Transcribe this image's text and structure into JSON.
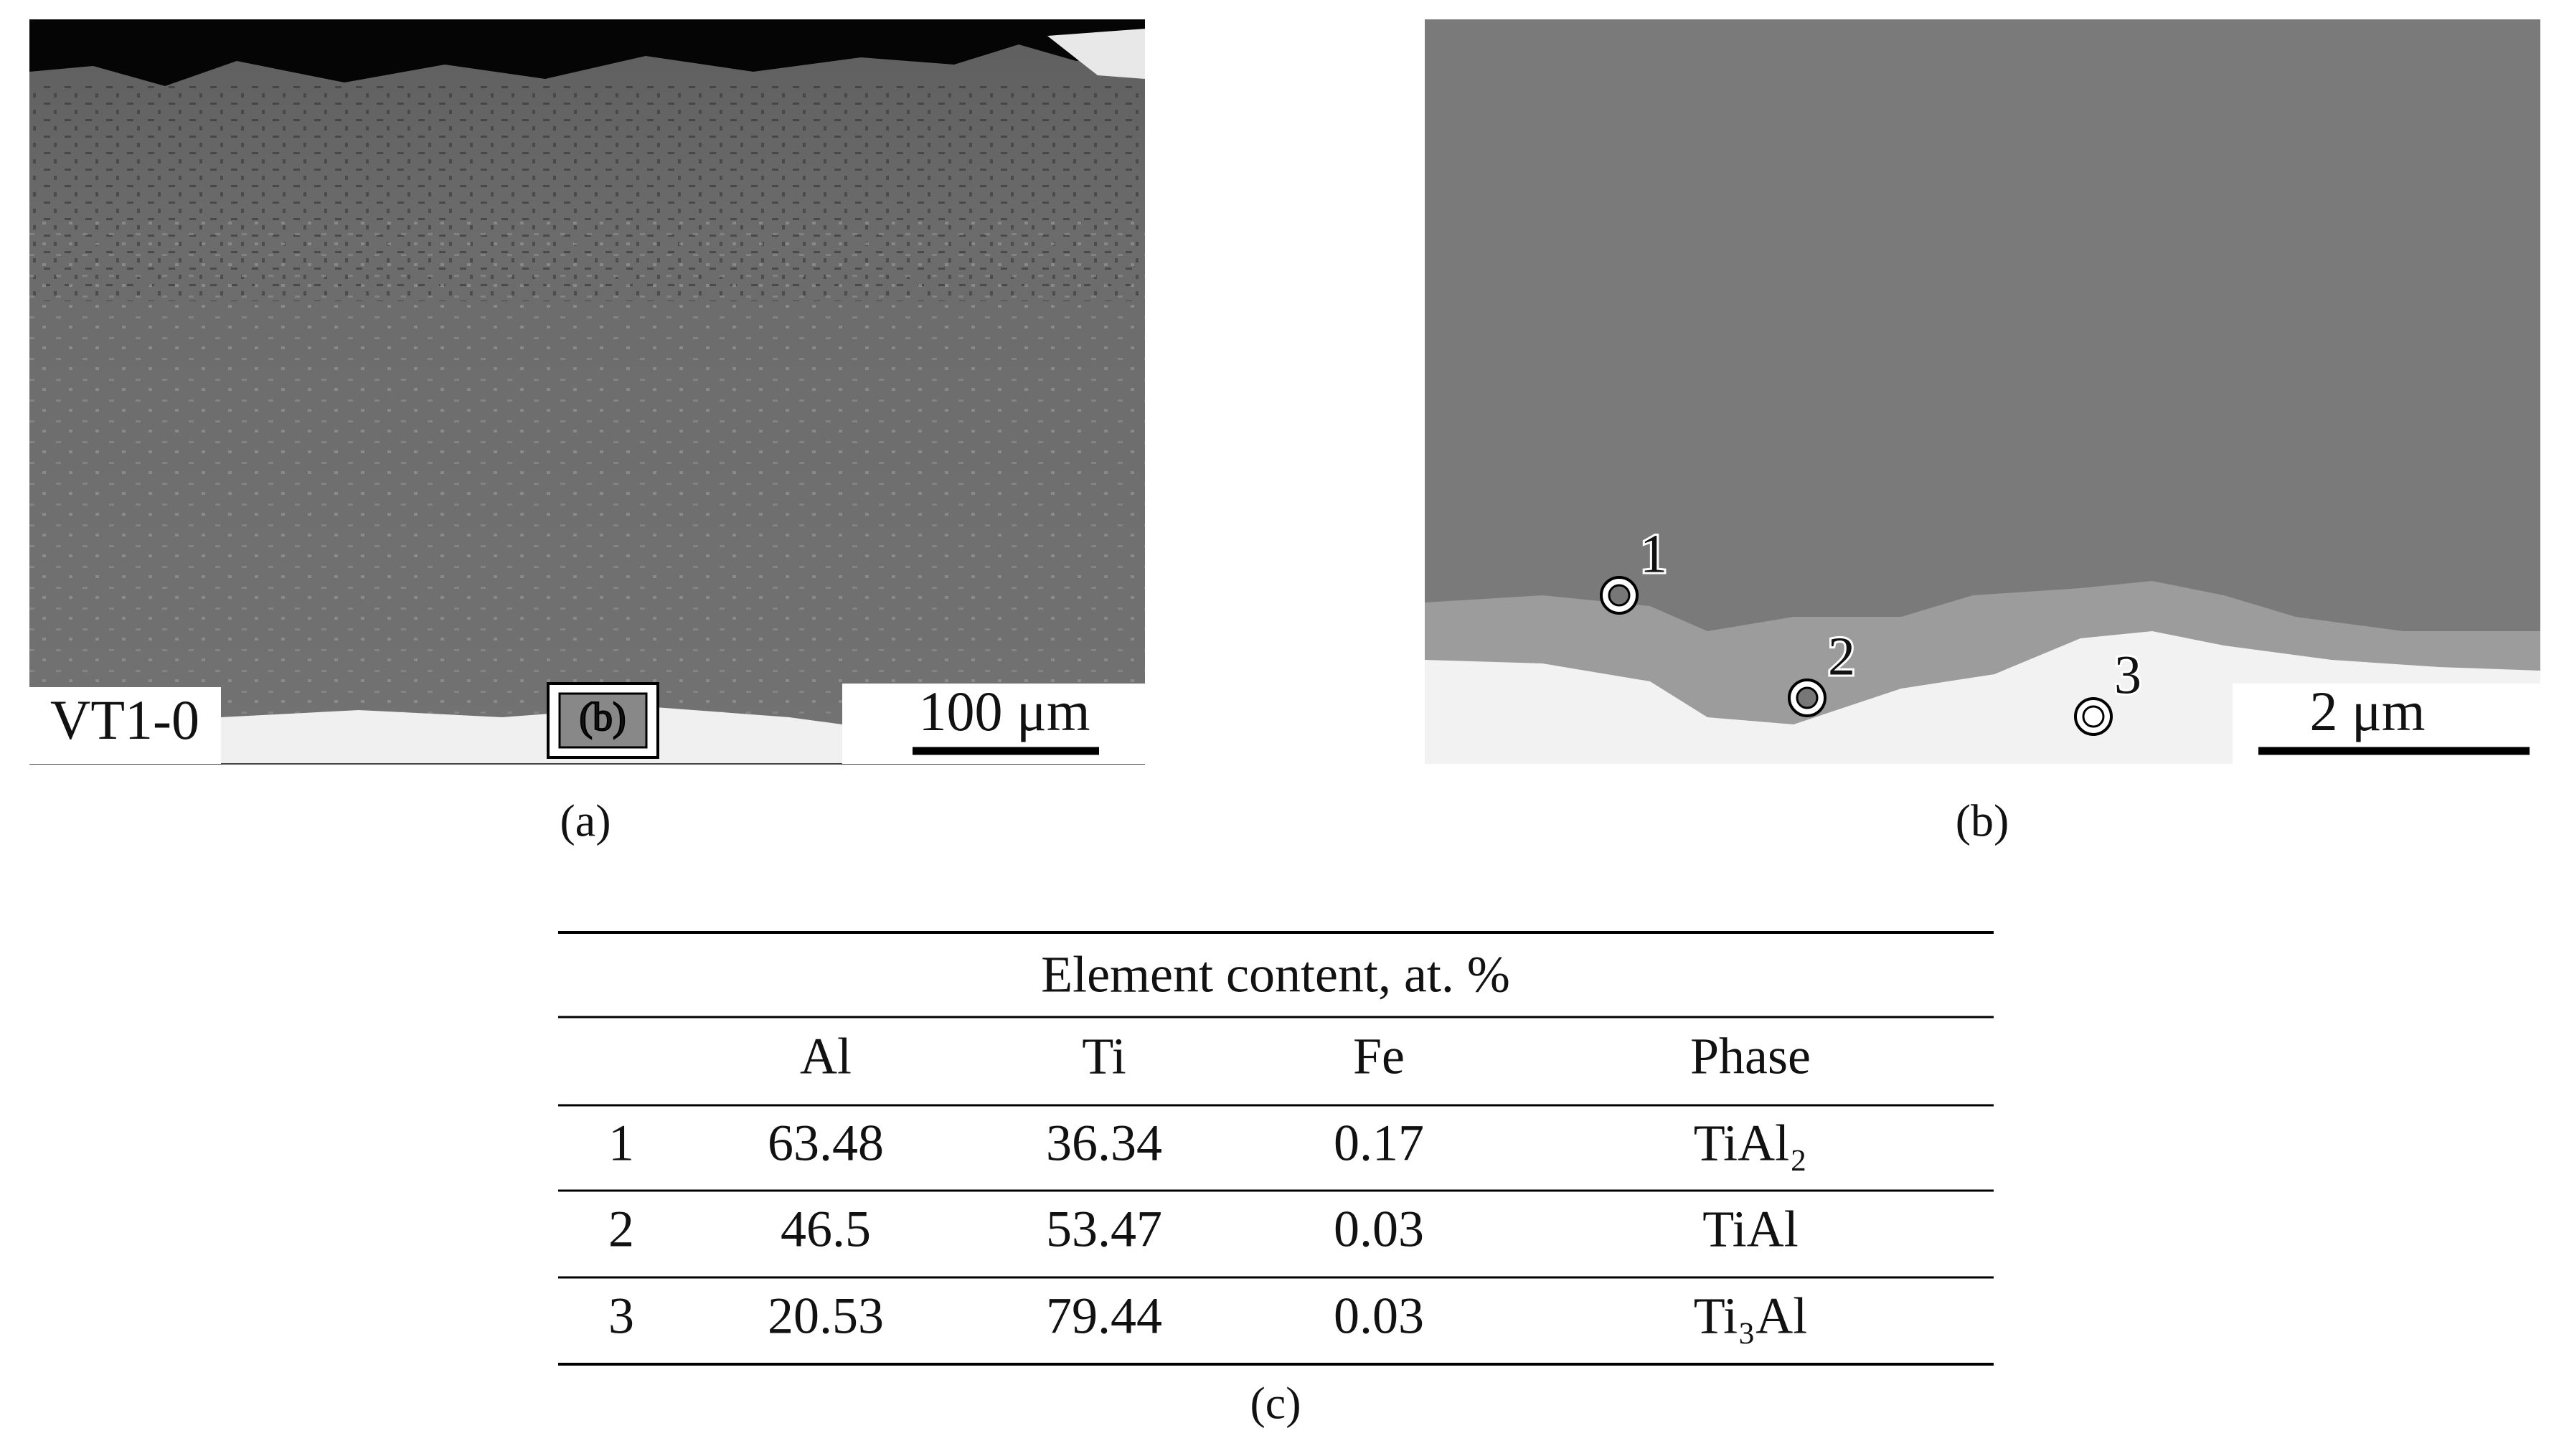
{
  "panel_a": {
    "sample_label": "VT1-0",
    "inset_label": "(b)",
    "scale_bar": "100 μm",
    "caption": "(a)"
  },
  "panel_b": {
    "points": [
      "1",
      "2",
      "3"
    ],
    "scale_bar": "2 μm",
    "caption": "(b)"
  },
  "table": {
    "title": "Element content, at. %",
    "columns": [
      "Al",
      "Ti",
      "Fe",
      "Phase"
    ],
    "rows": [
      [
        "1",
        "63.48",
        "36.34",
        "0.17",
        "TiAl₂"
      ],
      [
        "2",
        "46.5",
        "53.47",
        "0.03",
        "TiAl"
      ],
      [
        "3",
        "20.53",
        "79.44",
        "0.03",
        "Ti₃Al"
      ]
    ],
    "caption": "(c)"
  }
}
